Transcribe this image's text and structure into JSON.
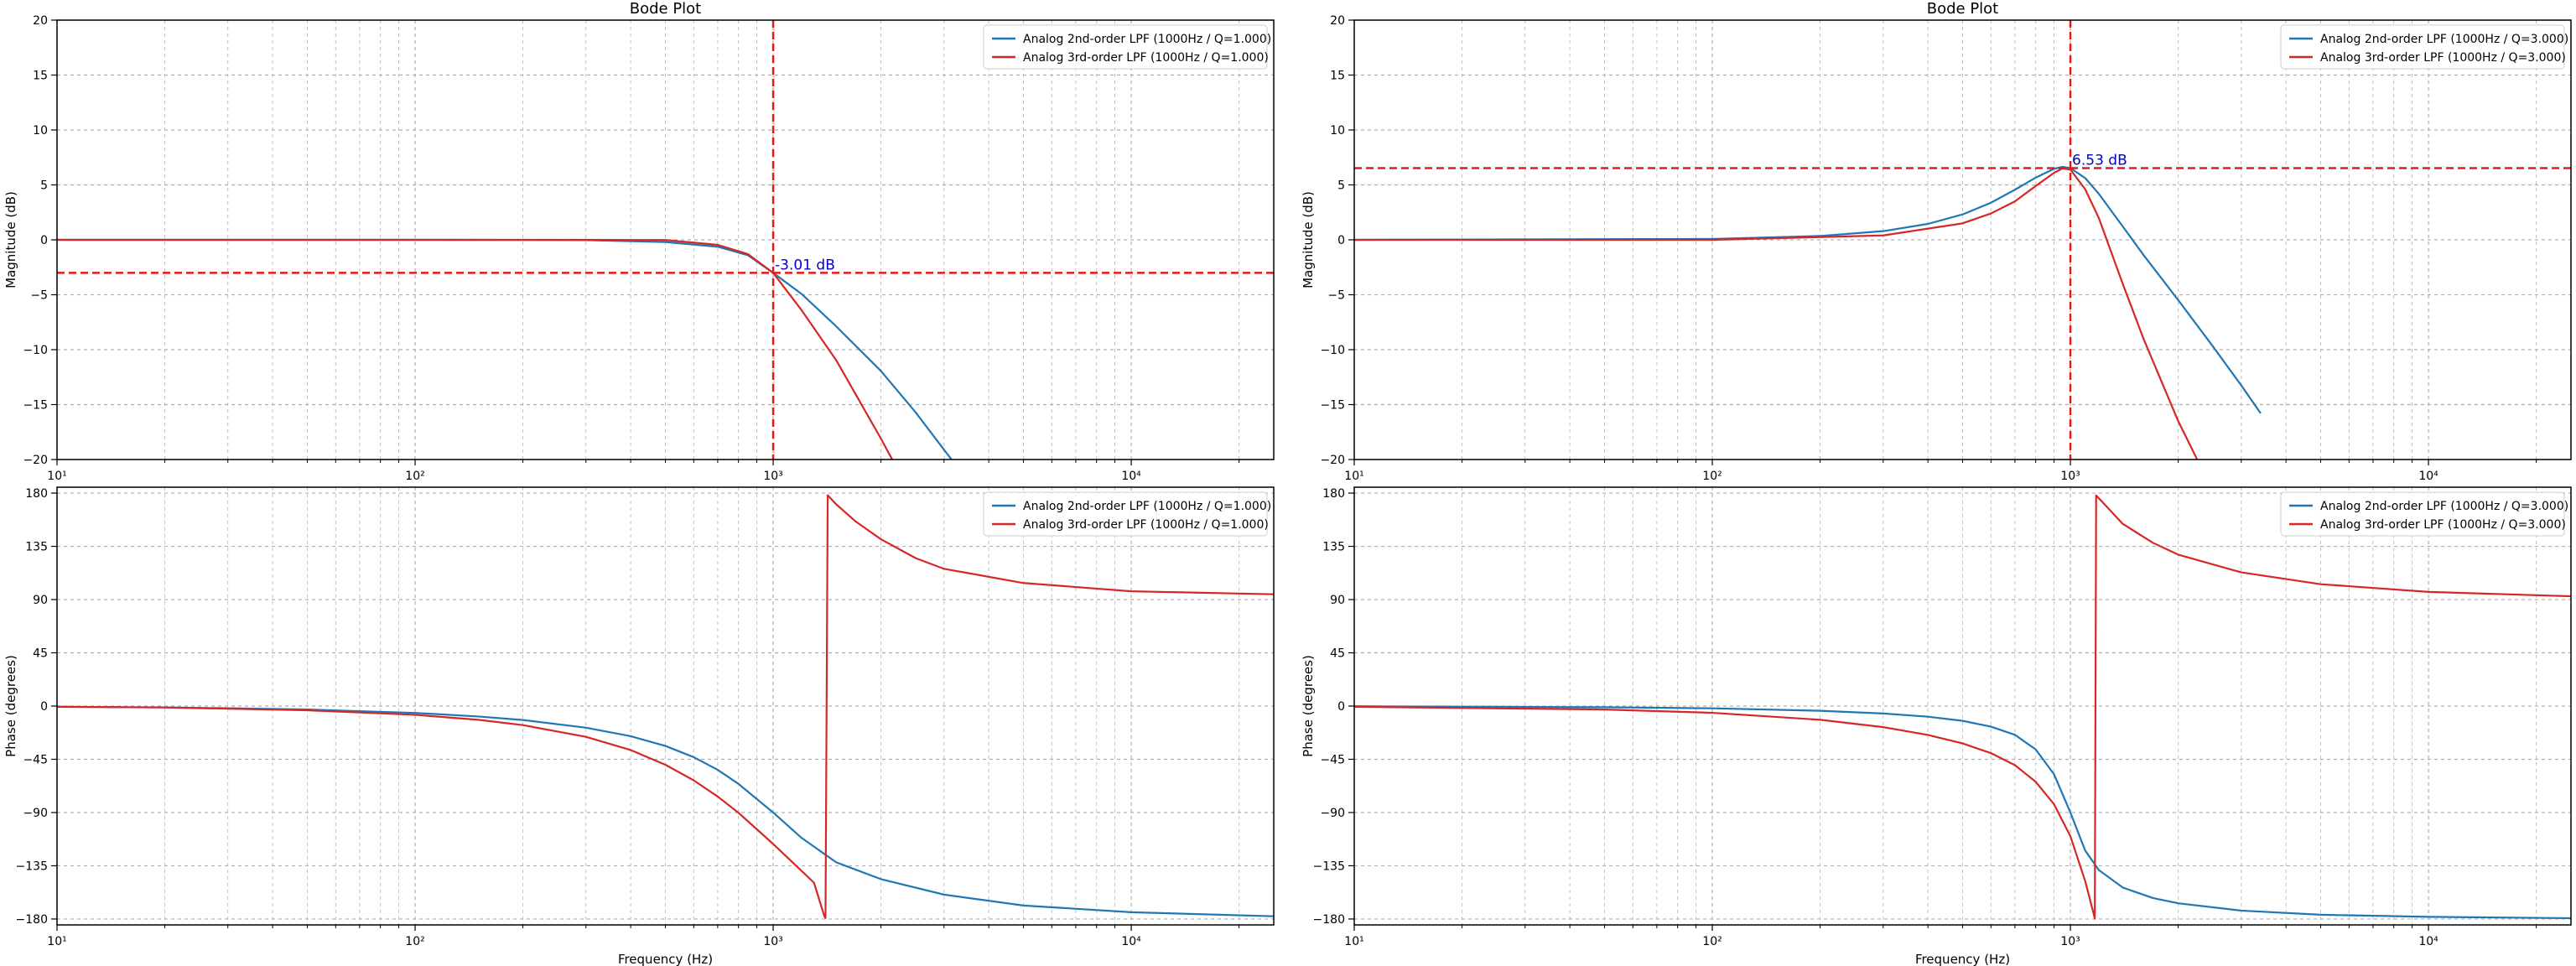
{
  "colors": {
    "series_2nd": "#1f77b4",
    "series_3rd": "#d62728",
    "marker": "#e31a1c",
    "annotation": "#0000cc",
    "grid": "#b0b0b0"
  },
  "chart_data": [
    {
      "id": "mag_q1",
      "type": "line",
      "title": "Bode Plot",
      "xlabel": "",
      "ylabel": "Magnitude (dB)",
      "xscale": "log",
      "xlim": [
        10,
        25000
      ],
      "ylim": [
        -20,
        20
      ],
      "xticks": [
        10,
        100,
        1000,
        10000
      ],
      "xtick_labels": [
        "10¹",
        "10²",
        "10³",
        "10⁴"
      ],
      "yticks": [
        -20,
        -15,
        -10,
        -5,
        0,
        5,
        10,
        15,
        20
      ],
      "ytick_labels": [
        "−20",
        "−15",
        "−10",
        "−5",
        "0",
        "5",
        "10",
        "15",
        "20"
      ],
      "grid": true,
      "legend_position": "top-right",
      "series": [
        {
          "name": "Analog 2nd-order LPF (1000Hz / Q=1.000)",
          "color": "#1f77b4",
          "x": [
            10,
            50,
            100,
            200,
            300,
            500,
            700,
            850,
            1000,
            1200,
            1500,
            2000,
            2500,
            3000,
            3200
          ],
          "y": [
            0,
            0,
            0,
            -0.01,
            -0.03,
            -0.2,
            -0.63,
            -1.4,
            -3.01,
            -4.92,
            -7.88,
            -11.94,
            -15.71,
            -19.11,
            -20.3
          ]
        },
        {
          "name": "Analog 3rd-order LPF (1000Hz / Q=1.000)",
          "color": "#d62728",
          "x": [
            10,
            50,
            100,
            200,
            300,
            500,
            700,
            850,
            1000,
            1200,
            1500,
            2000,
            2200
          ],
          "y": [
            0,
            0,
            0,
            0,
            0,
            -0.02,
            -0.46,
            -1.3,
            -3.01,
            -6.4,
            -10.96,
            -18.1,
            -20.6
          ]
        }
      ],
      "vline": {
        "x": 1000
      },
      "hline": {
        "y": -3.01
      },
      "annotation": {
        "text": "-3.01 dB",
        "x": 1000,
        "y": -3.01
      }
    },
    {
      "id": "mag_q3",
      "type": "line",
      "title": "Bode Plot",
      "xlabel": "",
      "ylabel": "Magnitude (dB)",
      "xscale": "log",
      "xlim": [
        10,
        25000
      ],
      "ylim": [
        -20,
        20
      ],
      "xticks": [
        10,
        100,
        1000,
        10000
      ],
      "xtick_labels": [
        "10¹",
        "10²",
        "10³",
        "10⁴"
      ],
      "yticks": [
        -20,
        -15,
        -10,
        -5,
        0,
        5,
        10,
        15,
        20
      ],
      "ytick_labels": [
        "−20",
        "−15",
        "−10",
        "−5",
        "0",
        "5",
        "10",
        "15",
        "20"
      ],
      "grid": true,
      "legend_position": "top-right",
      "series": [
        {
          "name": "Analog 2nd-order LPF (1000Hz / Q=3.000)",
          "color": "#1f77b4",
          "x": [
            10,
            100,
            200,
            300,
            400,
            500,
            600,
            700,
            800,
            900,
            950,
            1000,
            1100,
            1200,
            1400,
            1600,
            2000,
            2500,
            3000,
            3400
          ],
          "y": [
            0,
            0.08,
            0.35,
            0.79,
            1.45,
            2.31,
            3.38,
            4.56,
            5.66,
            6.47,
            6.64,
            6.53,
            5.62,
            4.2,
            1.22,
            -1.38,
            -5.48,
            -9.7,
            -13.25,
            -15.8
          ]
        },
        {
          "name": "Analog 3rd-order LPF (1000Hz / Q=3.000)",
          "color": "#d62728",
          "x": [
            10,
            100,
            300,
            500,
            600,
            700,
            800,
            900,
            950,
            1000,
            1100,
            1200,
            1400,
            1600,
            2000,
            2300
          ],
          "y": [
            0,
            0,
            0.4,
            1.5,
            2.4,
            3.5,
            4.9,
            6.1,
            6.5,
            6.4,
            4.6,
            2.0,
            -4.0,
            -9.0,
            -16.5,
            -20.5
          ]
        }
      ],
      "hline": {
        "y": 6.53
      },
      "vline": {
        "x": 1000
      },
      "annotation": {
        "text": "6.53 dB",
        "x": 1000,
        "y": 6.53
      }
    },
    {
      "id": "phase_q1",
      "type": "line",
      "title": "",
      "xlabel": "Frequency (Hz)",
      "ylabel": "Phase (degrees)",
      "xscale": "log",
      "xlim": [
        10,
        25000
      ],
      "ylim": [
        -185,
        185
      ],
      "xticks": [
        10,
        100,
        1000,
        10000
      ],
      "xtick_labels": [
        "10¹",
        "10²",
        "10³",
        "10⁴"
      ],
      "yticks": [
        -180,
        -135,
        -90,
        -45,
        0,
        45,
        90,
        135,
        180
      ],
      "ytick_labels": [
        "−180",
        "−135",
        "−90",
        "−45",
        "0",
        "45",
        "90",
        "135",
        "180"
      ],
      "grid": true,
      "legend_position": "top-right",
      "series": [
        {
          "name": "Analog 2nd-order LPF (1000Hz / Q=1.000)",
          "color": "#1f77b4",
          "x": [
            10,
            20,
            50,
            100,
            150,
            200,
            300,
            400,
            500,
            600,
            700,
            800,
            1000,
            1200,
            1500,
            2000,
            3000,
            5000,
            10000,
            25000
          ],
          "y": [
            -0.6,
            -1.1,
            -2.9,
            -5.8,
            -8.8,
            -11.8,
            -18.3,
            -25.5,
            -33.7,
            -43.2,
            -53.9,
            -65.8,
            -90,
            -111.4,
            -132.1,
            -146.3,
            -159.4,
            -168.6,
            -174.3,
            -177.7
          ]
        },
        {
          "name": "Analog 3rd-order LPF (1000Hz / Q=1.000)",
          "color": "#d62728",
          "x": [
            10,
            20,
            50,
            100,
            150,
            200,
            300,
            400,
            500,
            600,
            700,
            800,
            1000,
            1200,
            1300,
            1390,
            1400,
            1420,
            1500,
            1700,
            2000,
            2500,
            3000,
            5000,
            10000,
            25000
          ],
          "y": [
            -0.6,
            -1.2,
            -3.6,
            -7.4,
            -11.6,
            -16.1,
            -26.0,
            -37.2,
            -49.6,
            -62.8,
            -76.5,
            -90.2,
            -116.6,
            -139.3,
            -149.3,
            -177.8,
            -179.2,
            178.2,
            170.5,
            156.0,
            141.0,
            125.0,
            116.0,
            104.0,
            97.0,
            94.5
          ]
        }
      ]
    },
    {
      "id": "phase_q3",
      "type": "line",
      "title": "",
      "xlabel": "Frequency (Hz)",
      "ylabel": "Phase (degrees)",
      "xscale": "log",
      "xlim": [
        10,
        25000
      ],
      "ylim": [
        -185,
        185
      ],
      "xticks": [
        10,
        100,
        1000,
        10000
      ],
      "xtick_labels": [
        "10¹",
        "10²",
        "10³",
        "10⁴"
      ],
      "yticks": [
        -180,
        -135,
        -90,
        -45,
        0,
        45,
        90,
        135,
        180
      ],
      "ytick_labels": [
        "−180",
        "−135",
        "−90",
        "−45",
        "0",
        "45",
        "90",
        "135",
        "180"
      ],
      "grid": true,
      "legend_position": "top-right",
      "series": [
        {
          "name": "Analog 2nd-order LPF (1000Hz / Q=3.000)",
          "color": "#1f77b4",
          "x": [
            10,
            50,
            100,
            200,
            300,
            400,
            500,
            600,
            700,
            800,
            900,
            1000,
            1100,
            1200,
            1400,
            1700,
            2000,
            3000,
            5000,
            10000,
            25000
          ],
          "y": [
            -0.2,
            -1.0,
            -1.9,
            -4.0,
            -6.3,
            -9.0,
            -12.5,
            -17.4,
            -24.3,
            -36.7,
            -57.6,
            -90,
            -122.2,
            -138.6,
            -153.4,
            -162.3,
            -166.7,
            -172.9,
            -176.4,
            -178.2,
            -179.3
          ]
        },
        {
          "name": "Analog 3rd-order LPF (1000Hz / Q=3.000)",
          "color": "#d62728",
          "x": [
            10,
            50,
            100,
            200,
            300,
            400,
            500,
            600,
            700,
            800,
            900,
            1000,
            1100,
            1160,
            1170,
            1180,
            1250,
            1400,
            1700,
            2000,
            3000,
            5000,
            10000,
            25000
          ],
          "y": [
            -0.6,
            -2.9,
            -5.7,
            -11.6,
            -17.8,
            -24.4,
            -31.6,
            -39.8,
            -50.0,
            -64.0,
            -83.0,
            -110.0,
            -148.0,
            -175.0,
            -179.8,
            178.0,
            170.0,
            154.0,
            138.0,
            128.0,
            113.0,
            103.0,
            96.5,
            92.8
          ]
        }
      ]
    }
  ]
}
